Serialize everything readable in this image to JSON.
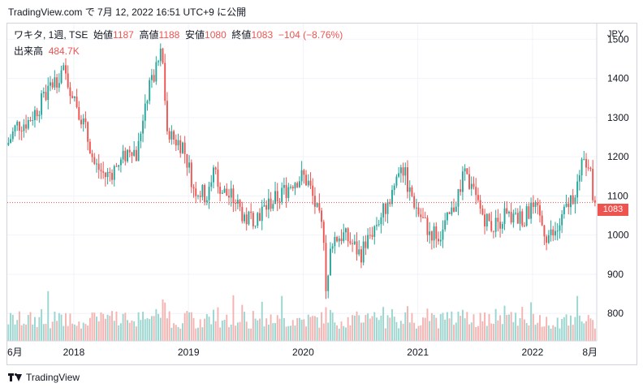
{
  "header": {
    "text": "TradingView.com で 7月 12, 2022 16:51 UTC+9 に公開"
  },
  "legend": {
    "symbol": "ワキタ, 1週, TSE",
    "open_label": "始値",
    "open": "1187",
    "high_label": "高値",
    "high": "1188",
    "low_label": "安値",
    "low": "1080",
    "close_label": "終値",
    "close": "1083",
    "change": "−104 (−8.76%)",
    "volume_label": "出来高",
    "volume": "484.7K"
  },
  "currency": "JPY",
  "last_price_label": "1083",
  "footer": {
    "brand": "TradingView"
  },
  "colors": {
    "up": "#26a69a",
    "down": "#ef5350",
    "up_volume": "#9ad6cf",
    "down_volume": "#f4b3b1",
    "grid": "#f0f3fa",
    "axis_text": "#131722"
  },
  "chart_data": {
    "type": "candlestick",
    "symbol": "ワキタ",
    "interval": "1週",
    "exchange": "TSE",
    "currency": "JPY",
    "last_close": 1083,
    "y_ticks": [
      800,
      900,
      1000,
      1100,
      1200,
      1300,
      1400,
      1500
    ],
    "ylim": [
      730,
      1540
    ],
    "x_labels": [
      "6月",
      "2018",
      "2019",
      "2020",
      "2021",
      "2022",
      "8月"
    ],
    "x_label_pos": [
      2017.42,
      2018.0,
      2019.0,
      2020.0,
      2021.0,
      2022.0,
      2022.58
    ],
    "xlim": [
      2017.42,
      2022.56
    ],
    "trend": [
      [
        2017.42,
        1230
      ],
      [
        2017.5,
        1280
      ],
      [
        2017.6,
        1290
      ],
      [
        2017.7,
        1330
      ],
      [
        2017.8,
        1380
      ],
      [
        2017.9,
        1420
      ],
      [
        2018.0,
        1360
      ],
      [
        2018.1,
        1270
      ],
      [
        2018.18,
        1180
      ],
      [
        2018.28,
        1150
      ],
      [
        2018.4,
        1180
      ],
      [
        2018.5,
        1230
      ],
      [
        2018.55,
        1200
      ],
      [
        2018.62,
        1340
      ],
      [
        2018.72,
        1420
      ],
      [
        2018.77,
        1480
      ],
      [
        2018.8,
        1300
      ],
      [
        2018.85,
        1250
      ],
      [
        2018.95,
        1230
      ],
      [
        2019.05,
        1120
      ],
      [
        2019.15,
        1100
      ],
      [
        2019.22,
        1160
      ],
      [
        2019.3,
        1110
      ],
      [
        2019.4,
        1090
      ],
      [
        2019.5,
        1040
      ],
      [
        2019.6,
        1050
      ],
      [
        2019.7,
        1080
      ],
      [
        2019.8,
        1100
      ],
      [
        2019.92,
        1140
      ],
      [
        2020.0,
        1150
      ],
      [
        2020.05,
        1130
      ],
      [
        2020.12,
        1060
      ],
      [
        2020.18,
        1000
      ],
      [
        2020.2,
        830
      ],
      [
        2020.25,
        990
      ],
      [
        2020.35,
        1000
      ],
      [
        2020.42,
        980
      ],
      [
        2020.5,
        950
      ],
      [
        2020.6,
        1010
      ],
      [
        2020.7,
        1060
      ],
      [
        2020.8,
        1130
      ],
      [
        2020.85,
        1190
      ],
      [
        2020.92,
        1120
      ],
      [
        2021.0,
        1060
      ],
      [
        2021.1,
        1010
      ],
      [
        2021.2,
        1000
      ],
      [
        2021.3,
        1060
      ],
      [
        2021.4,
        1150
      ],
      [
        2021.45,
        1130
      ],
      [
        2021.55,
        1060
      ],
      [
        2021.65,
        1020
      ],
      [
        2021.75,
        1050
      ],
      [
        2021.85,
        1040
      ],
      [
        2021.95,
        1050
      ],
      [
        2022.0,
        1070
      ],
      [
        2022.05,
        1050
      ],
      [
        2022.12,
        1000
      ],
      [
        2022.2,
        1000
      ],
      [
        2022.3,
        1070
      ],
      [
        2022.38,
        1120
      ],
      [
        2022.44,
        1180
      ],
      [
        2022.48,
        1200
      ],
      [
        2022.5,
        1187
      ],
      [
        2022.53,
        1083
      ]
    ]
  }
}
